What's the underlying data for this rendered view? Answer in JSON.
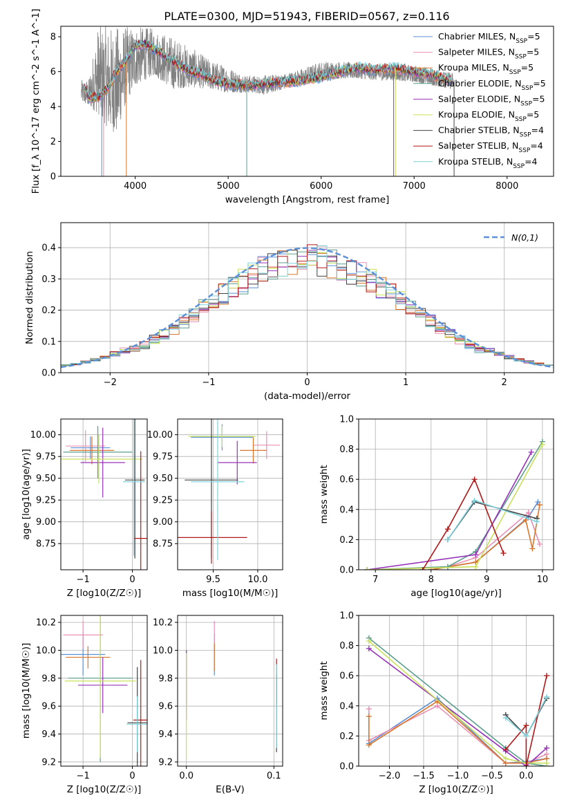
{
  "title": "PLATE=0300, MJD=51943, FIBERID=0567, z=0.116",
  "models": [
    {
      "name": "Chabrier MILES",
      "nssp": "5",
      "color": "#5b8fd6"
    },
    {
      "name": "Salpeter MILES",
      "nssp": "5",
      "color": "#e88fb4"
    },
    {
      "name": "Kroupa MILES",
      "nssp": "5",
      "color": "#d9762b"
    },
    {
      "name": "Chabrier ELODIE",
      "nssp": "5",
      "color": "#5a9d8c"
    },
    {
      "name": "Salpeter ELODIE",
      "nssp": "5",
      "color": "#9632b8"
    },
    {
      "name": "Kroupa ELODIE",
      "nssp": "5",
      "color": "#c8e05a"
    },
    {
      "name": "Chabrier STELIB",
      "nssp": "4",
      "color": "#404040"
    },
    {
      "name": "Salpeter STELIB",
      "nssp": "4",
      "color": "#b01818"
    },
    {
      "name": "Kroupa STELIB",
      "nssp": "4",
      "color": "#7fd3dd"
    }
  ],
  "chart_data": [
    {
      "id": "spectrum",
      "type": "line",
      "xlabel": "wavelength [Angstrom, rest frame]",
      "ylabel": "Flux [f_λ 10^-17 erg cm^-2 s^-1 A^-1]",
      "xlim": [
        3200,
        8500
      ],
      "ylim": [
        0,
        8.6
      ],
      "xticks": [
        4000,
        5000,
        6000,
        7000,
        8000
      ],
      "yticks": [
        0,
        2,
        4,
        6,
        8
      ],
      "grid": false,
      "legend": "top-right",
      "data_color": "#808080",
      "data_envelope": {
        "x": [
          3400,
          3500,
          3600,
          3700,
          3800,
          3900,
          4000,
          4200,
          4400,
          4600,
          4800,
          5000,
          5200,
          5400,
          5600,
          5800,
          6000,
          6200,
          6400,
          6600,
          6800,
          7000,
          7200,
          7400
        ],
        "lo": [
          4.3,
          4.0,
          3.6,
          2.8,
          2.4,
          4.2,
          5.2,
          5.8,
          5.0,
          5.1,
          5.0,
          4.8,
          4.8,
          4.7,
          5.0,
          5.2,
          5.5,
          5.6,
          5.6,
          5.5,
          5.5,
          5.4,
          5.2,
          5.0
        ],
        "hi": [
          5.5,
          5.6,
          8.6,
          8.6,
          8.6,
          8.6,
          8.6,
          8.5,
          8.0,
          7.4,
          6.7,
          6.3,
          5.8,
          5.8,
          5.9,
          6.2,
          6.6,
          6.6,
          6.5,
          6.4,
          6.4,
          6.2,
          6.0,
          6.0
        ]
      },
      "model_continuum": {
        "x": [
          3450,
          3500,
          3600,
          3700,
          3800,
          3900,
          4000,
          4100,
          4200,
          4300,
          4400,
          4500,
          4600,
          4700,
          4800,
          4900,
          5000,
          5200,
          5400,
          5600,
          5800,
          6000,
          6200,
          6400,
          6600,
          6800,
          7000,
          7200,
          7400
        ],
        "y": [
          5.1,
          4.5,
          4.5,
          5.0,
          6.0,
          6.6,
          7.5,
          7.6,
          7.3,
          7.0,
          6.6,
          6.3,
          6.0,
          5.9,
          5.6,
          5.4,
          5.3,
          5.2,
          5.3,
          5.4,
          5.5,
          5.7,
          6.0,
          6.2,
          6.1,
          6.2,
          6.0,
          5.8,
          5.5
        ]
      },
      "dips": [
        3640,
        3660,
        3905,
        5200,
        6780,
        6800,
        7430
      ]
    },
    {
      "id": "residuals",
      "type": "histogram",
      "xlabel": "(data-model)/error",
      "ylabel": "Normed distribution",
      "xlim": [
        -2.5,
        2.5
      ],
      "ylim": [
        0,
        0.48
      ],
      "xticks": [
        -2,
        -1,
        0,
        1,
        2
      ],
      "yticks": [
        0.0,
        0.1,
        0.2,
        0.3,
        0.4
      ],
      "grid": true,
      "legend": "top-right",
      "reference_label": "N(0,1)",
      "reference_color": "#5b8fd6",
      "bins": 50
    },
    {
      "id": "age_vs_Z",
      "type": "errorbar",
      "xlabel": "Z [log10(Z/Z☉)]",
      "ylabel": "age  [log10(age/yr)]",
      "xlim": [
        -1.45,
        0.3
      ],
      "ylim": [
        8.45,
        10.18
      ],
      "xticks": [
        -1,
        0
      ],
      "yticks": [
        8.75,
        9.0,
        9.25,
        9.5,
        9.75,
        10.0
      ],
      "grid": true,
      "points": [
        {
          "m": 0,
          "x": -0.85,
          "y": 9.85,
          "xe": 0.4,
          "ye": 0.13
        },
        {
          "m": 1,
          "x": -0.95,
          "y": 9.87,
          "xe": 0.4,
          "ye": 0.18
        },
        {
          "m": 2,
          "x": -0.82,
          "y": 9.82,
          "xe": 0.45,
          "ye": 0.16
        },
        {
          "m": 3,
          "x": -0.7,
          "y": 9.8,
          "xe": 0.7,
          "ye": 0.3
        },
        {
          "m": 4,
          "x": -0.6,
          "y": 9.68,
          "xe": 0.45,
          "ye": 0.4
        },
        {
          "m": 5,
          "x": -0.68,
          "y": 9.72,
          "xe": 0.88,
          "ye": 0.28
        },
        {
          "m": 6,
          "x": 0.05,
          "y": 9.48,
          "xe": 0.2,
          "ye": 0.9
        },
        {
          "m": 7,
          "x": 0.17,
          "y": 8.81,
          "xe": 0.15,
          "ye": 1.0
        },
        {
          "m": 8,
          "x": 0.03,
          "y": 9.46,
          "xe": 0.22,
          "ye": 0.85
        }
      ]
    },
    {
      "id": "age_vs_mass",
      "type": "errorbar",
      "xlabel": "mass [log10(M/M☉)]",
      "ylabel": "",
      "xlim": [
        9.1,
        10.28
      ],
      "ylim": [
        8.45,
        10.18
      ],
      "xticks": [
        9.5,
        10.0
      ],
      "yticks": [
        8.75,
        9.0,
        9.25,
        9.5,
        9.75,
        10.0
      ],
      "grid": true,
      "points": [
        {
          "m": 0,
          "x": 9.6,
          "y": 9.97,
          "xe": 0.35,
          "ye": 0.15
        },
        {
          "m": 1,
          "x": 10.1,
          "y": 9.88,
          "xe": 0.15,
          "ye": 0.16
        },
        {
          "m": 2,
          "x": 9.95,
          "y": 9.82,
          "xe": 0.15,
          "ye": 0.15
        },
        {
          "m": 3,
          "x": 9.6,
          "y": 9.98,
          "xe": 0.35,
          "ye": 0.12
        },
        {
          "m": 4,
          "x": 9.77,
          "y": 9.68,
          "xe": 0.22,
          "ye": 0.25
        },
        {
          "m": 5,
          "x": 9.6,
          "y": 9.98,
          "xe": 0.38,
          "ye": 0.12
        },
        {
          "m": 6,
          "x": 9.48,
          "y": 9.48,
          "xe": 0.3,
          "ye": 0.9
        },
        {
          "m": 7,
          "x": 9.48,
          "y": 8.82,
          "xe": 0.4,
          "ye": 0.3
        },
        {
          "m": 8,
          "x": 9.55,
          "y": 9.46,
          "xe": 0.3,
          "ye": 0.9
        }
      ]
    },
    {
      "id": "weight_vs_age",
      "type": "line",
      "xlabel": "age  [log10(age/yr)]",
      "ylabel": "mass weight",
      "xlim": [
        6.7,
        10.2
      ],
      "ylim": [
        0,
        1.0
      ],
      "xticks": [
        7,
        8,
        9,
        10
      ],
      "yticks": [
        0.0,
        0.2,
        0.4,
        0.6,
        0.8,
        1.0
      ],
      "grid": true,
      "series": [
        {
          "m": 0,
          "x": [
            8.0,
            8.8,
            9.75,
            9.92
          ],
          "y": [
            0.0,
            0.05,
            0.35,
            0.45
          ]
        },
        {
          "m": 1,
          "x": [
            8.0,
            8.3,
            8.8,
            9.75,
            9.95
          ],
          "y": [
            0.0,
            0.02,
            0.08,
            0.38,
            0.17
          ]
        },
        {
          "m": 2,
          "x": [
            8.0,
            8.8,
            9.7,
            9.82,
            9.95
          ],
          "y": [
            0.0,
            0.05,
            0.33,
            0.14,
            0.43
          ]
        },
        {
          "m": 3,
          "x": [
            6.85,
            8.3,
            8.8,
            10.0
          ],
          "y": [
            0.0,
            0.02,
            0.12,
            0.85
          ]
        },
        {
          "m": 4,
          "x": [
            6.85,
            8.8,
            9.8
          ],
          "y": [
            0.0,
            0.1,
            0.78
          ]
        },
        {
          "m": 5,
          "x": [
            6.85,
            8.8,
            10.0
          ],
          "y": [
            0.0,
            0.02,
            0.83
          ]
        },
        {
          "m": 6,
          "x": [
            8.3,
            8.78,
            9.9
          ],
          "y": [
            0.2,
            0.45,
            0.34
          ]
        },
        {
          "m": 7,
          "x": [
            7.85,
            8.3,
            8.78,
            9.3
          ],
          "y": [
            0.0,
            0.27,
            0.6,
            0.11
          ]
        },
        {
          "m": 8,
          "x": [
            8.3,
            8.78,
            9.9
          ],
          "y": [
            0.2,
            0.46,
            0.32
          ]
        }
      ]
    },
    {
      "id": "mass_vs_Z",
      "type": "errorbar",
      "xlabel": "Z [log10(Z/Z☉)]",
      "ylabel": "mass [log10(M/M☉)]",
      "xlim": [
        -1.45,
        0.3
      ],
      "ylim": [
        9.17,
        10.25
      ],
      "xticks": [
        -1,
        0
      ],
      "yticks": [
        9.2,
        9.4,
        9.6,
        9.8,
        10.0,
        10.2
      ],
      "grid": true,
      "points": [
        {
          "m": 0,
          "x": -1.0,
          "y": 9.97,
          "xe": 0.45,
          "ye": 0.15
        },
        {
          "m": 1,
          "x": -1.0,
          "y": 10.11,
          "xe": 0.4,
          "ye": 0.1
        },
        {
          "m": 2,
          "x": -0.9,
          "y": 9.95,
          "xe": 0.45,
          "ye": 0.08
        },
        {
          "m": 3,
          "x": -0.65,
          "y": 9.8,
          "xe": 0.65,
          "ye": 0.6
        },
        {
          "m": 4,
          "x": -0.6,
          "y": 9.75,
          "xe": 0.5,
          "ye": 0.2
        },
        {
          "m": 5,
          "x": -0.65,
          "y": 9.78,
          "xe": 0.72,
          "ye": 0.55
        },
        {
          "m": 6,
          "x": 0.1,
          "y": 9.48,
          "xe": 0.2,
          "ye": 0.4
        },
        {
          "m": 7,
          "x": 0.17,
          "y": 9.5,
          "xe": 0.15,
          "ye": 0.43
        },
        {
          "m": 8,
          "x": 0.1,
          "y": 9.47,
          "xe": 0.22,
          "ye": 0.2
        }
      ]
    },
    {
      "id": "mass_vs_ebv",
      "type": "errorbar",
      "xlabel": "E(B-V)",
      "ylabel": "",
      "xlim": [
        -0.01,
        0.11
      ],
      "ylim": [
        9.17,
        10.25
      ],
      "xticks": [
        0.0,
        0.1
      ],
      "yticks": [
        9.2,
        9.4,
        9.6,
        9.8,
        10.0,
        10.2
      ],
      "grid": true,
      "points": [
        {
          "m": 0,
          "x": 0.032,
          "y": 9.97,
          "xe": 0,
          "ye": 0.15
        },
        {
          "m": 1,
          "x": 0.032,
          "y": 10.11,
          "xe": 0,
          "ye": 0.1
        },
        {
          "m": 2,
          "x": 0.032,
          "y": 9.95,
          "xe": 0,
          "ye": 0.1
        },
        {
          "m": 3,
          "x": 0.0,
          "y": 9.8,
          "xe": 0,
          "ye": 0.2
        },
        {
          "m": 4,
          "x": 0.0,
          "y": 9.75,
          "xe": 0,
          "ye": 0.25
        },
        {
          "m": 5,
          "x": 0.0,
          "y": 9.6,
          "xe": 0,
          "ye": 0.38
        },
        {
          "m": 6,
          "x": 0.103,
          "y": 9.55,
          "xe": 0,
          "ye": 0.28
        },
        {
          "m": 7,
          "x": 0.103,
          "y": 9.78,
          "xe": 0,
          "ye": 0.16
        },
        {
          "m": 8,
          "x": 0.103,
          "y": 9.6,
          "xe": 0,
          "ye": 0.3
        }
      ]
    },
    {
      "id": "weight_vs_Z",
      "type": "line",
      "xlabel": "Z [log10(Z/Z☉)]",
      "ylabel": "mass weight",
      "xlim": [
        -2.45,
        0.4
      ],
      "ylim": [
        0,
        1.0
      ],
      "xticks": [
        -2.0,
        -1.5,
        -1.0,
        -0.5,
        0.0
      ],
      "yticks": [
        0.0,
        0.2,
        0.4,
        0.6,
        0.8,
        1.0
      ],
      "grid": true,
      "series": [
        {
          "m": 0,
          "x": [
            -2.3,
            -1.3,
            -0.3,
            0.0,
            0.3
          ],
          "y": [
            0.15,
            0.45,
            0.02,
            0.03,
            0.05
          ]
        },
        {
          "m": 1,
          "x": [
            -2.3,
            -2.3,
            -1.3,
            -0.3,
            0.0,
            0.3
          ],
          "y": [
            0.38,
            0.17,
            0.4,
            0.02,
            0.02,
            0.08
          ]
        },
        {
          "m": 2,
          "x": [
            -2.3,
            -2.3,
            -1.3,
            -0.3,
            0.0,
            0.3
          ],
          "y": [
            0.33,
            0.14,
            0.43,
            0.02,
            0.02,
            0.05
          ]
        },
        {
          "m": 3,
          "x": [
            -2.3,
            -0.3,
            0.0,
            0.3
          ],
          "y": [
            0.85,
            0.12,
            0.02,
            0.0
          ]
        },
        {
          "m": 4,
          "x": [
            -2.3,
            -0.3,
            0.0,
            0.3
          ],
          "y": [
            0.78,
            0.1,
            0.0,
            0.12
          ]
        },
        {
          "m": 5,
          "x": [
            -2.3,
            -0.3,
            0.0,
            0.3
          ],
          "y": [
            0.83,
            0.05,
            0.02,
            0.02
          ]
        },
        {
          "m": 6,
          "x": [
            -0.3,
            0.0,
            0.3
          ],
          "y": [
            0.34,
            0.2,
            0.45
          ]
        },
        {
          "m": 7,
          "x": [
            -0.3,
            0.0,
            0.0,
            0.3
          ],
          "y": [
            0.11,
            0.27,
            0.0,
            0.6
          ]
        },
        {
          "m": 8,
          "x": [
            -0.3,
            0.0,
            0.3
          ],
          "y": [
            0.32,
            0.2,
            0.46
          ]
        }
      ]
    }
  ]
}
